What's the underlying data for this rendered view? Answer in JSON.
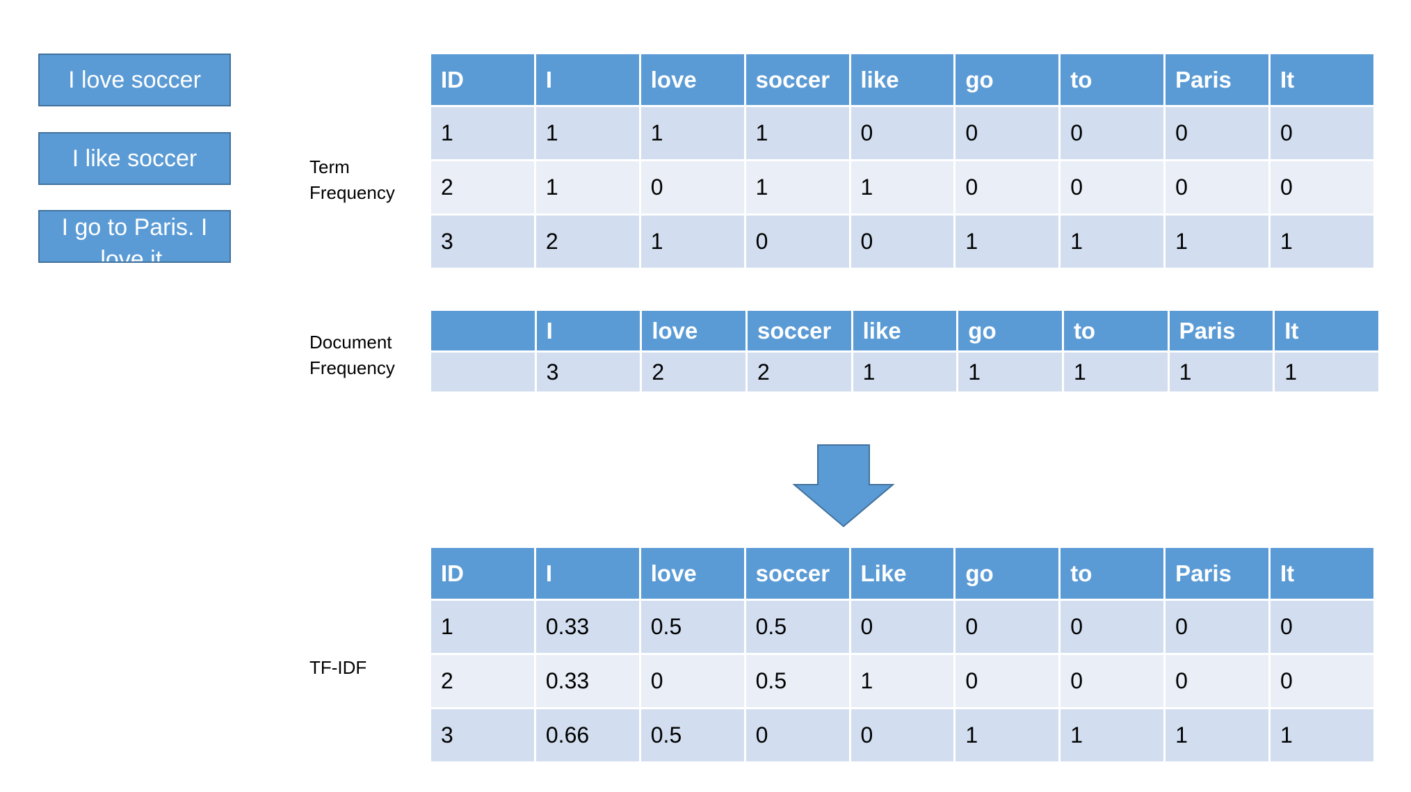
{
  "documents": [
    "I love soccer",
    "I like soccer",
    "I go to Paris. I love it."
  ],
  "labels": {
    "tf": [
      "Term",
      "Frequency"
    ],
    "df": [
      "Document",
      "Frequency"
    ],
    "tfidf": [
      "TF-IDF"
    ]
  },
  "tf_table": {
    "headers": [
      "ID",
      "I",
      "love",
      "soccer",
      "like",
      "go",
      "to",
      "Paris",
      "It"
    ],
    "rows": [
      [
        "1",
        "1",
        "1",
        "1",
        "0",
        "0",
        "0",
        "0",
        "0"
      ],
      [
        "2",
        "1",
        "0",
        "1",
        "1",
        "0",
        "0",
        "0",
        "0"
      ],
      [
        "3",
        "2",
        "1",
        "0",
        "0",
        "1",
        "1",
        "1",
        "1"
      ]
    ]
  },
  "df_table": {
    "headers": [
      "",
      "I",
      "love",
      "soccer",
      "like",
      "go",
      "to",
      "Paris",
      "It"
    ],
    "rows": [
      [
        "",
        "3",
        "2",
        "2",
        "1",
        "1",
        "1",
        "1",
        "1"
      ]
    ]
  },
  "tfidf_table": {
    "headers": [
      "ID",
      "I",
      "love",
      "soccer",
      "Like",
      "go",
      "to",
      "Paris",
      "It"
    ],
    "rows": [
      [
        "1",
        "0.33",
        "0.5",
        "0.5",
        "0",
        "0",
        "0",
        "0",
        "0"
      ],
      [
        "2",
        "0.33",
        "0",
        "0.5",
        "1",
        "0",
        "0",
        "0",
        "0"
      ],
      [
        "3",
        "0.66",
        "0.5",
        "0",
        "0",
        "1",
        "1",
        "1",
        "1"
      ]
    ]
  },
  "colors": {
    "header_fill": "#5b9bd5",
    "row_odd": "#d2deef",
    "row_even": "#e9eef7",
    "arrow_fill": "#5b9bd5",
    "arrow_stroke": "#41719c"
  },
  "icons": {
    "arrow": "down-arrow-icon"
  }
}
